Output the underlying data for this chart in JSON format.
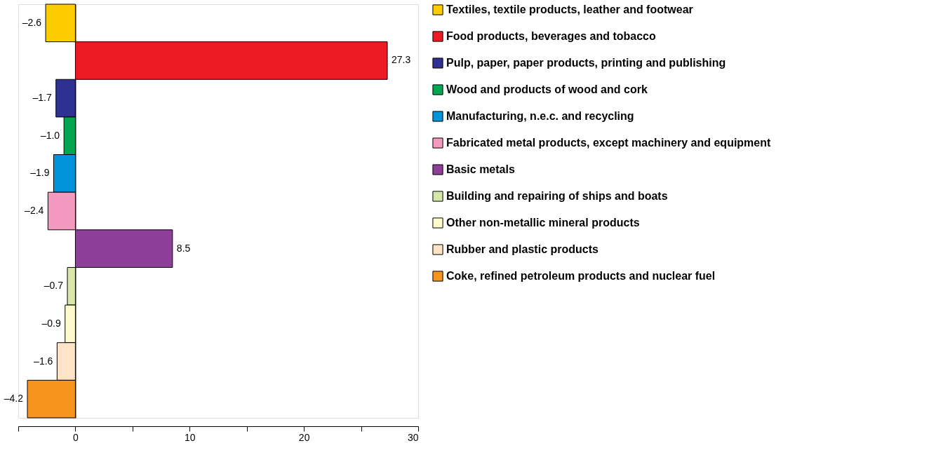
{
  "chart_data": {
    "type": "bar",
    "orientation": "horizontal",
    "categories": [
      null,
      null,
      null,
      null,
      null,
      null,
      null,
      null,
      null,
      null,
      null
    ],
    "series": [
      {
        "name": "Textiles, textile products, leather and footwear",
        "color": "#ffcc00",
        "values": [
          -2.6,
          null,
          null,
          null,
          null,
          null,
          null,
          null,
          null,
          null,
          null
        ],
        "value_labels": [
          "–2.6",
          null,
          null,
          null,
          null,
          null,
          null,
          null,
          null,
          null,
          null
        ]
      },
      {
        "name": "Food products, beverages and tobacco",
        "color": "#ed1c24",
        "values": [
          null,
          27.3,
          null,
          null,
          null,
          null,
          null,
          null,
          null,
          null,
          null
        ],
        "value_labels": [
          null,
          "27.3",
          null,
          null,
          null,
          null,
          null,
          null,
          null,
          null,
          null
        ]
      },
      {
        "name": "Pulp, paper, paper products, printing and publishing",
        "color": "#2e3192",
        "values": [
          null,
          null,
          -1.7,
          null,
          null,
          null,
          null,
          null,
          null,
          null,
          null
        ],
        "value_labels": [
          null,
          null,
          "–1.7",
          null,
          null,
          null,
          null,
          null,
          null,
          null,
          null
        ]
      },
      {
        "name": "Wood and products of wood and cork",
        "color": "#00a651",
        "values": [
          null,
          null,
          null,
          -1.0,
          null,
          null,
          null,
          null,
          null,
          null,
          null
        ],
        "value_labels": [
          null,
          null,
          null,
          "–1.0",
          null,
          null,
          null,
          null,
          null,
          null,
          null
        ]
      },
      {
        "name": "Manufacturing, n.e.c. and recycling",
        "color": "#0095da",
        "values": [
          null,
          null,
          null,
          null,
          -1.9,
          null,
          null,
          null,
          null,
          null,
          null
        ],
        "value_labels": [
          null,
          null,
          null,
          null,
          "–1.9",
          null,
          null,
          null,
          null,
          null,
          null
        ]
      },
      {
        "name": "Fabricated metal products, except machinery and equipment",
        "color": "#f49ac1",
        "values": [
          null,
          null,
          null,
          null,
          null,
          -2.4,
          null,
          null,
          null,
          null,
          null
        ],
        "value_labels": [
          null,
          null,
          null,
          null,
          null,
          "–2.4",
          null,
          null,
          null,
          null,
          null
        ]
      },
      {
        "name": "Basic metals",
        "color": "#8e3f97",
        "values": [
          null,
          null,
          null,
          null,
          null,
          null,
          8.5,
          null,
          null,
          null,
          null
        ],
        "value_labels": [
          null,
          null,
          null,
          null,
          null,
          null,
          "8.5",
          null,
          null,
          null,
          null
        ]
      },
      {
        "name": "Building and repairing of ships and boats",
        "color": "#d7e7a9",
        "values": [
          null,
          null,
          null,
          null,
          null,
          null,
          null,
          -0.7,
          null,
          null,
          null
        ],
        "value_labels": [
          null,
          null,
          null,
          null,
          null,
          null,
          null,
          "–0.7",
          null,
          null,
          null
        ]
      },
      {
        "name": "Other non-metallic mineral products",
        "color": "#fffccc",
        "values": [
          null,
          null,
          null,
          null,
          null,
          null,
          null,
          null,
          -0.9,
          null,
          null
        ],
        "value_labels": [
          null,
          null,
          null,
          null,
          null,
          null,
          null,
          null,
          "–0.9",
          null,
          null
        ]
      },
      {
        "name": "Rubber and plastic products",
        "color": "#fde3c8",
        "values": [
          null,
          null,
          null,
          null,
          null,
          null,
          null,
          null,
          null,
          -1.6,
          null
        ],
        "value_labels": [
          null,
          null,
          null,
          null,
          null,
          null,
          null,
          null,
          null,
          "–1.6",
          null
        ]
      },
      {
        "name": "Coke, refined petroleum products and nuclear fuel",
        "color": "#f7941d",
        "values": [
          null,
          null,
          null,
          null,
          null,
          null,
          null,
          null,
          null,
          null,
          -4.2
        ],
        "value_labels": [
          null,
          null,
          null,
          null,
          null,
          null,
          null,
          null,
          null,
          null,
          "–4.2"
        ]
      }
    ],
    "xlim": [
      -5,
      30
    ],
    "xticks": [
      {
        "value": -5,
        "label": null
      },
      0,
      {
        "value": 5,
        "label": null
      },
      10,
      {
        "value": 15,
        "label": null
      },
      20,
      {
        "value": 25,
        "label": null
      },
      30
    ],
    "tick_labels": "x",
    "legend": "right"
  }
}
